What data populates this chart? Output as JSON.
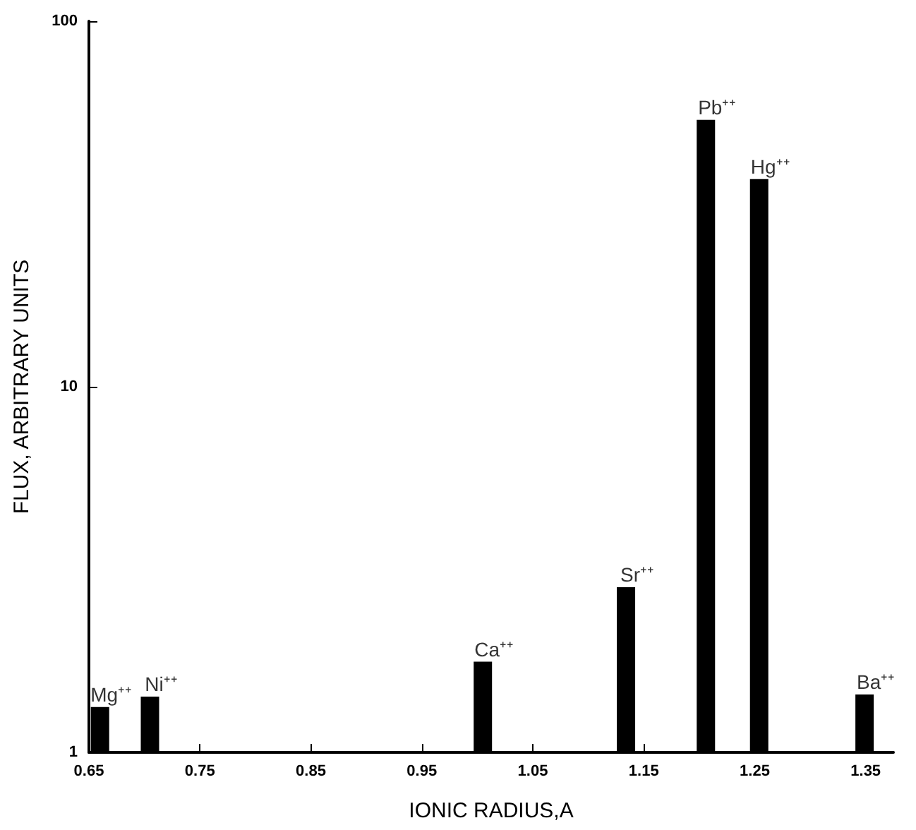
{
  "chart_data": {
    "type": "bar",
    "xlabel": "IONIC RADIUS,A",
    "ylabel": "FLUX, ARBITRARY UNITS",
    "x": [
      0.66,
      0.705,
      1.005,
      1.134,
      1.206,
      1.254,
      1.349
    ],
    "values": [
      1.33,
      1.42,
      1.77,
      2.83,
      53.7,
      37,
      1.44
    ],
    "color": "#000000",
    "log": "y",
    "xlim": [
      0.65,
      1.375
    ],
    "xticks": [
      0.65,
      0.75,
      0.85,
      0.95,
      1.05,
      1.15,
      1.25,
      1.35
    ],
    "ylim": [
      1,
      100
    ],
    "yticks": [
      1,
      10,
      100
    ],
    "grid": false,
    "annotations": [
      {
        "text": "Mg⁺⁺",
        "x": 0.66,
        "y": 1.33
      },
      {
        "text": "Ni⁺⁺",
        "x": 0.705,
        "y": 1.42
      },
      {
        "text": "Ca⁺⁺",
        "x": 1.005,
        "y": 1.77
      },
      {
        "text": "Sr⁺⁺",
        "x": 1.134,
        "y": 2.83
      },
      {
        "text": "Pb⁺⁺",
        "x": 1.206,
        "y": 53.7
      },
      {
        "text": "Hg⁺⁺",
        "x": 1.254,
        "y": 37
      },
      {
        "text": "Ba⁺⁺",
        "x": 1.349,
        "y": 1.44
      }
    ]
  }
}
